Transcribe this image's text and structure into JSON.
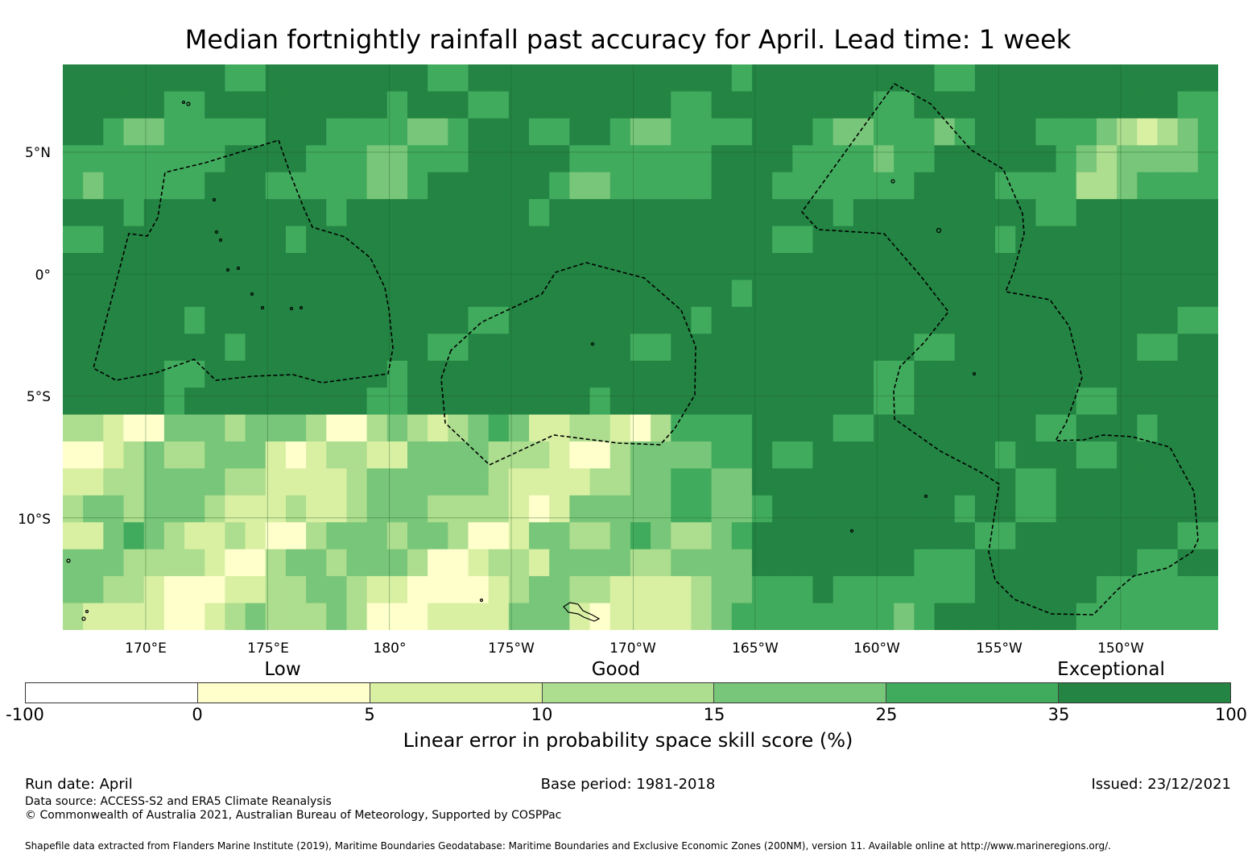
{
  "title": "Median fortnightly rainfall past accuracy for April. Lead time: 1 week",
  "map": {
    "lon_ticks": [
      {
        "lon": 170,
        "label": "170°E"
      },
      {
        "lon": 175,
        "label": "175°E"
      },
      {
        "lon": 180,
        "label": "180°"
      },
      {
        "lon": 185,
        "label": "175°W"
      },
      {
        "lon": 190,
        "label": "170°W"
      },
      {
        "lon": 195,
        "label": "165°W"
      },
      {
        "lon": 200,
        "label": "160°W"
      },
      {
        "lon": 205,
        "label": "155°W"
      },
      {
        "lon": 210,
        "label": "150°W"
      }
    ],
    "lat_ticks": [
      {
        "lat": 5,
        "label": "5°N"
      },
      {
        "lat": 0,
        "label": "0°"
      },
      {
        "lat": -5,
        "label": "5°S"
      },
      {
        "lat": -10,
        "label": "10°S"
      }
    ],
    "extent": {
      "lon_min": 166.6,
      "lon_max": 214.0,
      "lat_min": -14.6,
      "lat_max": 8.6
    }
  },
  "colorbar": {
    "categories": [
      {
        "label": "Low",
        "value": 5
      },
      {
        "label": "Good",
        "value": 15
      },
      {
        "label": "Exceptional",
        "value": 50
      }
    ],
    "ticks": [
      "-100",
      "0",
      "5",
      "10",
      "15",
      "25",
      "35",
      "100"
    ],
    "colors": [
      "#ffffff",
      "#ffffcc",
      "#d9f0a3",
      "#addd8e",
      "#78c679",
      "#41ab5d",
      "#238443"
    ],
    "label": "Linear error in probability space skill score (%)"
  },
  "footer": {
    "run_date": "Run date: April",
    "base_period": "Base period: 1981-2018",
    "issued": "Issued: 23/12/2021",
    "data_source": "Data source: ACCESS-S2 and ERA5 Climate Reanalysis",
    "copyright": "© Commonwealth of Australia 2021, Australian Bureau of Meteorology, Supported by COSPPac",
    "shapefile": "Shapefile data extracted from Flanders Marine Institute (2019), Maritime Boundaries Geodatabase: Maritime Boundaries and Exclusive Economic Zones (200NM), version 11. Available online at http://www.marineregions.org/."
  }
}
